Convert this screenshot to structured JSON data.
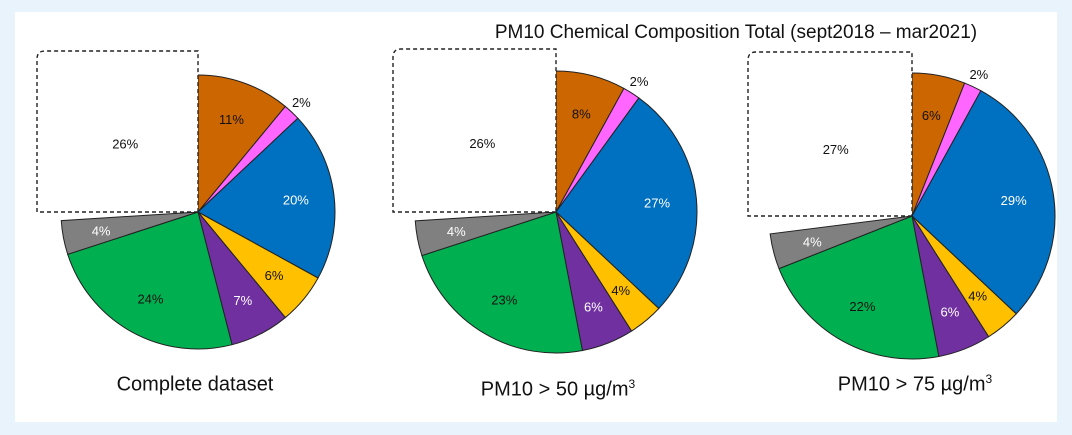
{
  "title": "PM10 Chemical Composition  Total (sept2018 – mar2021)",
  "colors": [
    "#cc6600",
    "#ff66ff",
    "#0070c0",
    "#ffc000",
    "#7030a0",
    "#00b050",
    "#808080",
    "#ffffff"
  ],
  "chart_data": [
    {
      "type": "pie",
      "caption_main": "Complete dataset",
      "caption_sup": "",
      "slices": [
        11,
        2,
        20,
        6,
        7,
        24,
        4,
        26
      ],
      "labels": [
        "11%",
        "2%",
        "20%",
        "6%",
        "7%",
        "24%",
        "4%",
        "26%"
      ]
    },
    {
      "type": "pie",
      "caption_main": "PM10 > 50 µg/m",
      "caption_sup": "3",
      "slices": [
        8,
        2,
        27,
        4,
        6,
        23,
        4,
        26
      ],
      "labels": [
        "8%",
        "2%",
        "27%",
        "4%",
        "6%",
        "23%",
        "4%",
        "26%"
      ]
    },
    {
      "type": "pie",
      "caption_main": "PM10 > 75 µg/m",
      "caption_sup": "3",
      "slices": [
        6,
        2,
        29,
        4,
        6,
        22,
        4,
        27
      ],
      "labels": [
        "6%",
        "2%",
        "29%",
        "4%",
        "6%",
        "22%",
        "4%",
        "27%"
      ]
    }
  ]
}
